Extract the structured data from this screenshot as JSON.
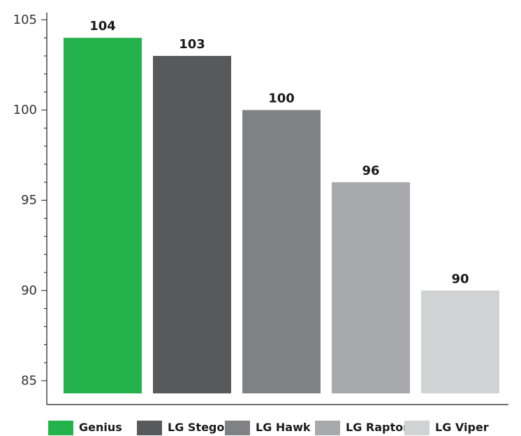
{
  "chart_data": {
    "type": "bar",
    "categories": [
      "Genius",
      "LG Stego",
      "LG Hawk",
      "LG Raptor",
      "LG Viper"
    ],
    "values": [
      104,
      103,
      100,
      96,
      90
    ],
    "colors": [
      "#23b24b",
      "#58595b",
      "#808184",
      "#a7a9ac",
      "#d1d2d4"
    ],
    "ylim": [
      84.3,
      105.4
    ],
    "yticks": [
      85,
      90,
      95,
      100,
      105
    ],
    "minor_tick_step": 1,
    "title": "",
    "xlabel": "",
    "ylabel": "",
    "legend": "bottom",
    "grid": false
  }
}
